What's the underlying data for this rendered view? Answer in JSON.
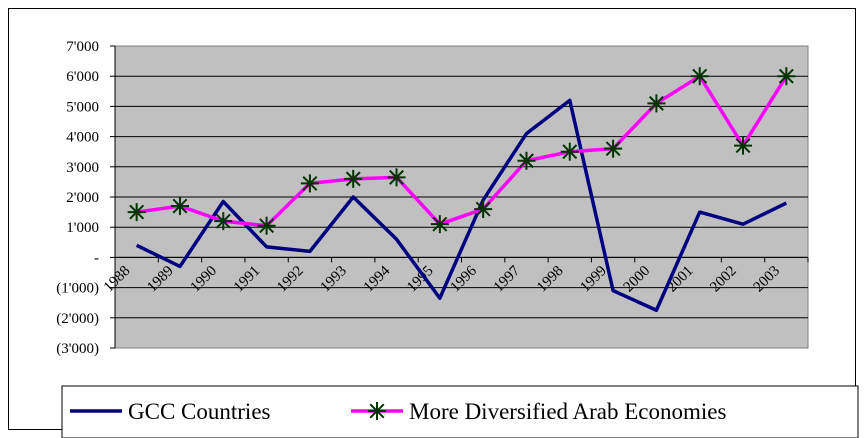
{
  "chart_data": {
    "type": "line",
    "categories": [
      "1988",
      "1989",
      "1990",
      "1991",
      "1992",
      "1993",
      "1994",
      "1995",
      "1996",
      "1997",
      "1998",
      "1999",
      "2000",
      "2001",
      "2002",
      "2003"
    ],
    "series": [
      {
        "name": "GCC Countries",
        "values": [
          400,
          -300,
          1850,
          350,
          200,
          2000,
          600,
          -1350,
          1900,
          4100,
          5200,
          -1100,
          -1750,
          1500,
          1100,
          1800
        ],
        "color": "#000080",
        "marker": "none"
      },
      {
        "name": "More Diversified Arab Economies",
        "values": [
          1500,
          1700,
          1200,
          1050,
          2450,
          2600,
          2650,
          1100,
          1600,
          3200,
          3500,
          3600,
          5100,
          6000,
          3700,
          6000
        ],
        "color": "#ff00ff",
        "marker_color": "#003300",
        "marker": "star"
      }
    ],
    "y_ticks": [
      {
        "value": 7000,
        "label": "7'000"
      },
      {
        "value": 6000,
        "label": "6'000"
      },
      {
        "value": 5000,
        "label": "5'000"
      },
      {
        "value": 4000,
        "label": "4'000"
      },
      {
        "value": 3000,
        "label": "3'000"
      },
      {
        "value": 2000,
        "label": "2'000"
      },
      {
        "value": 1000,
        "label": "1'000"
      },
      {
        "value": 0,
        "label": "-"
      },
      {
        "value": -1000,
        "label": "(1'000)"
      },
      {
        "value": -2000,
        "label": "(2'000)"
      },
      {
        "value": -3000,
        "label": "(3'000)"
      }
    ],
    "ylim": [
      -3000,
      7000
    ],
    "grid": true,
    "plot_background": "#c0c0c0",
    "legend_position": "bottom",
    "title": "",
    "xlabel": "",
    "ylabel": ""
  }
}
